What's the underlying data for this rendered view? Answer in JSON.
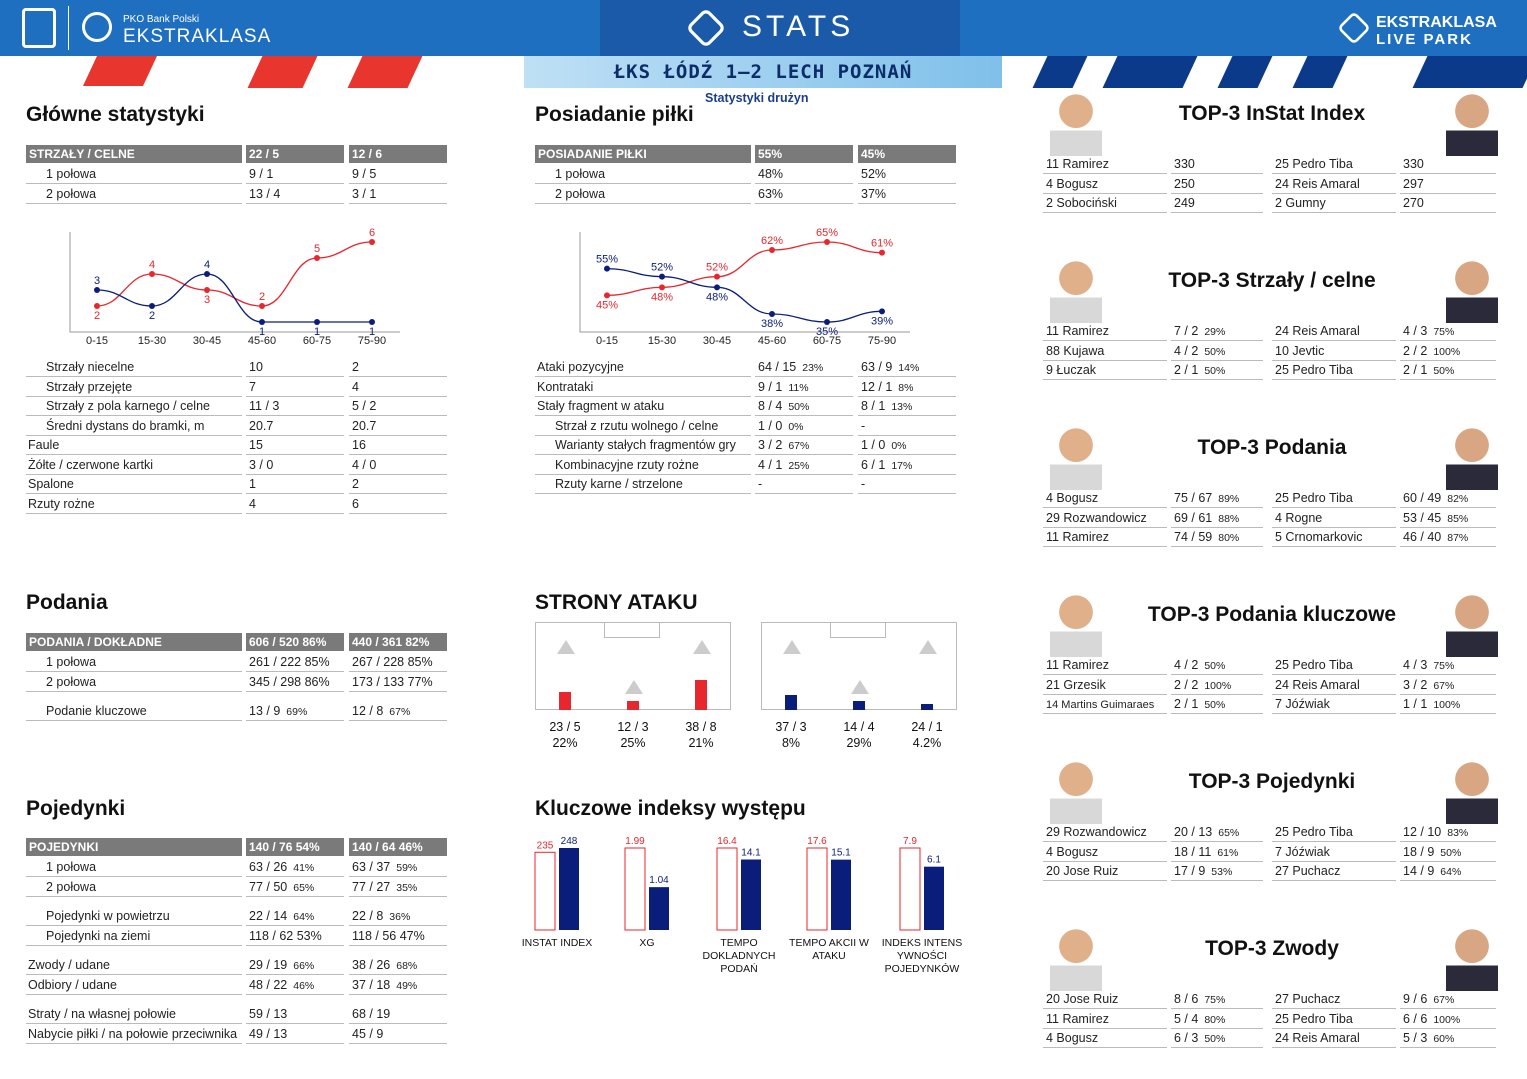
{
  "header": {
    "bank": "PKO Bank Polski",
    "league": "EKSTRAKLASA",
    "stats": "STATS",
    "livepark_1": "EKSTRAKLASA",
    "livepark_2": "LIVE PARK",
    "match": "ŁKS ŁÓDŹ 1–2  LECH POZNAŃ",
    "subtitle": "Statystyki drużyn"
  },
  "colors": {
    "home": "#e8262d",
    "away": "#0b1d7a",
    "accent": "#1f6fc0"
  },
  "glowne": {
    "title": "Główne statystyki",
    "head": [
      "STRZAŁY / CELNE",
      "22 / 5",
      "12 / 6"
    ],
    "halves": [
      [
        "1 połowa",
        "9 / 1",
        "9 / 5"
      ],
      [
        "2 połowa",
        "13 / 4",
        "3 / 1"
      ]
    ],
    "rows": [
      [
        "Strzały niecelne",
        "10",
        "2"
      ],
      [
        "Strzały przejęte",
        "7",
        "4"
      ],
      [
        "Strzały z pola karnego / celne",
        "11 / 3",
        "5 / 2"
      ],
      [
        "Średni dystans do bramki, m",
        "20.7",
        "20.7"
      ],
      [
        "Faule",
        "15",
        "16"
      ],
      [
        "Żółte / czerwone kartki",
        "3 / 0",
        "4 / 0"
      ],
      [
        "Spalone",
        "1",
        "2"
      ],
      [
        "Rzuty rożne",
        "4",
        "6"
      ]
    ]
  },
  "posiadanie": {
    "title": "Posiadanie piłki",
    "head": [
      "POSIADANIE PIŁKI",
      "55%",
      "45%"
    ],
    "halves": [
      [
        "1 połowa",
        "48%",
        "52%"
      ],
      [
        "2 połowa",
        "63%",
        "37%"
      ]
    ],
    "rows": [
      [
        "Ataki pozycyjne",
        "64 / 15",
        "23%",
        "63 / 9",
        "14%"
      ],
      [
        "Kontrataki",
        "9 / 1",
        "11%",
        "12 / 1",
        "8%"
      ],
      [
        "Stały fragment w ataku",
        "8 / 4",
        "50%",
        "8 / 1",
        "13%"
      ],
      [
        "Strzał z rzutu wolnego / celne",
        "1 / 0",
        "0%",
        "-",
        ""
      ],
      [
        "Warianty stałych fragmentów gry",
        "3 / 2",
        "67%",
        "1 / 0",
        "0%"
      ],
      [
        "Kombinacyjne rzuty rożne",
        "4 / 1",
        "25%",
        "6 / 1",
        "17%"
      ],
      [
        "Rzuty karne /  strzelone",
        "-",
        "",
        "-",
        ""
      ]
    ]
  },
  "chart_data": [
    {
      "type": "line",
      "categories": [
        "0-15",
        "15-30",
        "30-45",
        "45-60",
        "60-75",
        "75-90"
      ],
      "series": [
        {
          "values": [
            2,
            4,
            3,
            2,
            5,
            6
          ]
        },
        {
          "values": [
            3,
            2,
            4,
            1,
            1,
            1
          ]
        }
      ]
    },
    {
      "type": "line",
      "categories": [
        "0-15",
        "15-30",
        "30-45",
        "45-60",
        "60-75",
        "75-90"
      ],
      "series": [
        {
          "values": [
            45,
            48,
            52,
            62,
            65,
            61
          ]
        },
        {
          "values": [
            55,
            52,
            48,
            38,
            35,
            39
          ]
        }
      ]
    },
    {
      "type": "bar",
      "categories": [
        "INSTAT INDEX",
        "XG",
        "TEMPO DOKLADNYCH PODAŃ",
        "TEMPO AKCII W ATAKU",
        "INDEKS INTENS YWNOŚCI POJEDYNKÓW"
      ],
      "series": [
        {
          "values": [
            235,
            1.99,
            16.4,
            17.6,
            7.9
          ]
        },
        {
          "values": [
            248,
            1.04,
            14.1,
            15.1,
            6.1
          ]
        }
      ]
    }
  ],
  "podania": {
    "title": "Podania",
    "head": [
      "PODANIA / DOKŁADNE",
      "606 / 520 86%",
      "440 / 361 82%"
    ],
    "rows": [
      [
        "1 połowa",
        "261 / 222 85%",
        "267 / 228 85%"
      ],
      [
        "2 połowa",
        "345 / 298 86%",
        "173 / 133 77%"
      ],
      [
        "Podanie kluczowe",
        "13 / 9",
        "69%",
        "12 / 8",
        "67%"
      ]
    ]
  },
  "pojedynki": {
    "title": "Pojedynki",
    "head": [
      "POJEDYNKI",
      "140 / 76 54%",
      "140 / 64 46%"
    ],
    "rows": [
      [
        "1 połowa",
        "63 / 26",
        "41%",
        "63 / 37",
        "59%"
      ],
      [
        "2 połowa",
        "77 / 50",
        "65%",
        "77 / 27",
        "35%"
      ],
      [
        "Pojedynki w powietrzu",
        "22 / 14",
        "64%",
        "22 / 8",
        "36%"
      ],
      [
        "Pojedynki na ziemi",
        "118 / 62 53%",
        "",
        "118 / 56 47%",
        ""
      ],
      [
        "Zwody / udane",
        "29 / 19",
        "66%",
        "38 / 26",
        "68%"
      ],
      [
        "Odbiory / udane",
        "48 / 22",
        "46%",
        "37 / 18",
        "49%"
      ],
      [
        "Straty / na własnej połowie",
        "59 / 13",
        "",
        "68 / 19",
        ""
      ],
      [
        "Nabycie piłki / na połowie przeciwnika",
        "49 / 13",
        "",
        "45 / 9",
        ""
      ]
    ]
  },
  "strony": {
    "title": "STRONY ATAKU",
    "home": [
      [
        "23 / 5",
        "22%"
      ],
      [
        "12 / 3",
        "25%"
      ],
      [
        "38 / 8",
        "21%"
      ]
    ],
    "away": [
      [
        "37 / 3",
        "8%"
      ],
      [
        "14 / 4",
        "29%"
      ],
      [
        "24 / 1",
        "4.2%"
      ]
    ],
    "home_fill": [
      0.3,
      0.15,
      0.5
    ],
    "away_fill": [
      0.25,
      0.15,
      0.1
    ]
  },
  "kluczowe": {
    "title": "Kluczowe indeksy występu"
  },
  "top": [
    {
      "title": "TOP-3 InStat Index",
      "rows": [
        [
          "11 Ramirez",
          "330",
          "",
          "25 Pedro Tiba",
          "330",
          ""
        ],
        [
          "4  Bogusz",
          "250",
          "",
          "24 Reis Amaral",
          "297",
          ""
        ],
        [
          "2  Sobociński",
          "249",
          "",
          "2  Gumny",
          "270",
          ""
        ]
      ]
    },
    {
      "title": "TOP-3 Strzały / celne",
      "rows": [
        [
          "11 Ramirez",
          "7 / 2",
          "29%",
          "24 Reis Amaral",
          "4 / 3",
          "75%"
        ],
        [
          "88 Kujawa",
          "4 / 2",
          "50%",
          "10 Jevtic",
          "2 / 2",
          "100%"
        ],
        [
          "9  Łuczak",
          "2 / 1",
          "50%",
          "25 Pedro Tiba",
          "2 / 1",
          "50%"
        ]
      ]
    },
    {
      "title": "TOP-3 Podania",
      "rows": [
        [
          "4  Bogusz",
          "75 / 67",
          "89%",
          "25 Pedro Tiba",
          "60 / 49",
          "82%"
        ],
        [
          "29 Rozwandowicz",
          "69 / 61",
          "88%",
          "4  Rogne",
          "53 / 45",
          "85%"
        ],
        [
          "11 Ramirez",
          "74 / 59",
          "80%",
          "5  Crnomarkovic",
          "46 / 40",
          "87%"
        ]
      ]
    },
    {
      "title": "TOP-3 Podania kluczowe",
      "rows": [
        [
          "11 Ramirez",
          "4 / 2",
          "50%",
          "25 Pedro Tiba",
          "4 / 3",
          "75%"
        ],
        [
          "21 Grzesik",
          "2 / 2",
          "100%",
          "24 Reis Amaral",
          "3 / 2",
          "67%"
        ],
        [
          "14 Martins Guimaraes",
          "2 / 1",
          "50%",
          "7  Jóźwiak",
          "1 / 1",
          "100%"
        ]
      ]
    },
    {
      "title": "TOP-3 Pojedynki",
      "rows": [
        [
          "29 Rozwandowicz",
          "20 / 13",
          "65%",
          "25 Pedro Tiba",
          "12 / 10",
          "83%"
        ],
        [
          "4  Bogusz",
          "18 / 11",
          "61%",
          "7  Jóźwiak",
          "18 / 9",
          "50%"
        ],
        [
          "20 Jose Ruiz",
          "17 / 9",
          "53%",
          "27 Puchacz",
          "14 / 9",
          "64%"
        ]
      ]
    },
    {
      "title": "TOP-3 Zwody",
      "rows": [
        [
          "20 Jose Ruiz",
          "8 / 6",
          "75%",
          "27 Puchacz",
          "9 / 6",
          "67%"
        ],
        [
          "11 Ramirez",
          "5 / 4",
          "80%",
          "25 Pedro Tiba",
          "6 / 6",
          "100%"
        ],
        [
          "4  Bogusz",
          "6 / 3",
          "50%",
          "24 Reis Amaral",
          "5 / 3",
          "60%"
        ]
      ]
    }
  ]
}
